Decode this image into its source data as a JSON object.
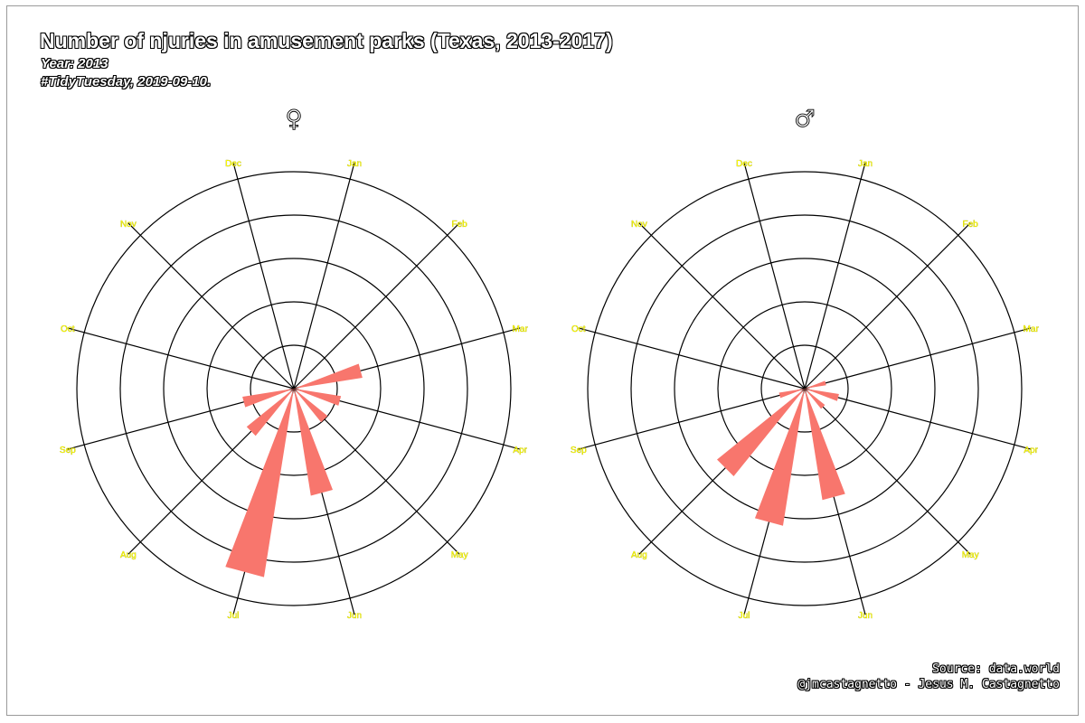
{
  "title": "Number of njuries in amusement parks (Texas, 2013-2017)",
  "subtitle": "Year: 2013",
  "caption_line2": "#TidyTuesday, 2019-09-10.",
  "source": "Source: data.world",
  "credit": "@jmcastagnetto - Jesus M. Castagnetto",
  "colors": {
    "bar": "#f8766d",
    "grid": "#000000",
    "month_label": "#ffff00"
  },
  "chart_data": [
    {
      "type": "bar",
      "coord": "polar",
      "panel_label": "♀",
      "categories": [
        "Jan",
        "Feb",
        "Mar",
        "Apr",
        "May",
        "Jun",
        "Jul",
        "Aug",
        "Sep",
        "Oct",
        "Nov",
        "Dec"
      ],
      "values": [
        0,
        0,
        1.6,
        1.1,
        1.0,
        2.5,
        4.4,
        1.4,
        1.2,
        0,
        0,
        0
      ],
      "rlim": [
        0,
        5
      ],
      "grid": true
    },
    {
      "type": "bar",
      "coord": "polar",
      "panel_label": "♂",
      "categories": [
        "Jan",
        "Feb",
        "Mar",
        "Apr",
        "May",
        "Jun",
        "Jul",
        "Aug",
        "Sep",
        "Oct",
        "Nov",
        "Dec"
      ],
      "values": [
        0,
        0,
        0.5,
        0.8,
        0.6,
        2.6,
        3.2,
        2.6,
        0.6,
        0,
        0,
        0
      ],
      "rlim": [
        0,
        5
      ],
      "grid": true
    }
  ]
}
